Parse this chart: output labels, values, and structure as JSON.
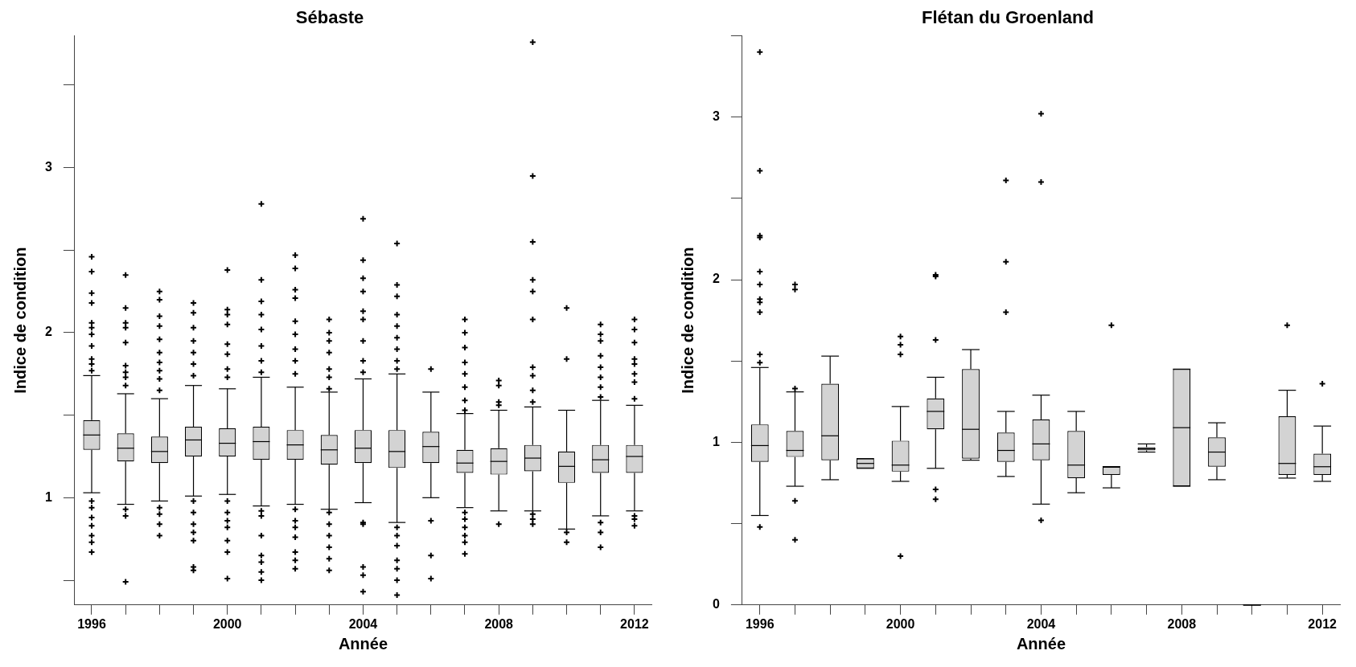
{
  "chart_data": [
    {
      "type": "box",
      "title": "Sébaste",
      "xlabel": "Année",
      "ylabel": "Indice de condition",
      "marker": "cross",
      "categories": [
        "1996",
        null,
        null,
        null,
        "2000",
        null,
        null,
        null,
        "2004",
        null,
        null,
        null,
        "2008",
        null,
        null,
        null,
        "2012"
      ],
      "ylim": [
        0.35,
        3.8
      ],
      "yticks": [
        {
          "value": 0.5,
          "label": null
        },
        1,
        {
          "value": 1.5,
          "label": null
        },
        2,
        {
          "value": 2.5,
          "label": null
        },
        3,
        {
          "value": 3.5,
          "label": null
        }
      ],
      "boxes": [
        {
          "low": 1.03,
          "q1": 1.29,
          "median": 1.38,
          "q3": 1.47,
          "high": 1.74,
          "outliers": [
            2.46,
            2.37,
            2.24,
            2.18,
            2.06,
            2.03,
            1.99,
            1.92,
            1.84,
            1.81,
            1.77,
            0.98,
            0.94,
            0.88,
            0.83,
            0.77,
            0.73,
            0.67
          ]
        },
        {
          "low": 0.96,
          "q1": 1.22,
          "median": 1.3,
          "q3": 1.39,
          "high": 1.63,
          "outliers": [
            2.35,
            2.15,
            2.06,
            2.03,
            1.94,
            1.8,
            1.76,
            1.73,
            1.68,
            0.93,
            0.89,
            0.49
          ]
        },
        {
          "low": 0.98,
          "q1": 1.21,
          "median": 1.28,
          "q3": 1.37,
          "high": 1.6,
          "outliers": [
            2.25,
            2.2,
            2.1,
            2.04,
            1.96,
            1.88,
            1.82,
            1.77,
            1.72,
            1.65,
            0.94,
            0.9,
            0.84,
            0.77
          ]
        },
        {
          "low": 1.01,
          "q1": 1.25,
          "median": 1.35,
          "q3": 1.43,
          "high": 1.68,
          "outliers": [
            2.18,
            2.12,
            2.03,
            1.95,
            1.88,
            1.81,
            1.74,
            0.98,
            0.91,
            0.84,
            0.79,
            0.74,
            0.58,
            0.56
          ]
        },
        {
          "low": 1.02,
          "q1": 1.25,
          "median": 1.33,
          "q3": 1.42,
          "high": 1.66,
          "outliers": [
            2.38,
            2.14,
            2.11,
            2.05,
            1.93,
            1.87,
            1.78,
            1.73,
            0.98,
            0.91,
            0.86,
            0.82,
            0.74,
            0.67,
            0.51
          ]
        },
        {
          "low": 0.95,
          "q1": 1.23,
          "median": 1.34,
          "q3": 1.43,
          "high": 1.73,
          "outliers": [
            2.78,
            2.32,
            2.19,
            2.11,
            2.02,
            1.92,
            1.83,
            1.76,
            0.92,
            0.89,
            0.77,
            0.65,
            0.61,
            0.55,
            0.5
          ]
        },
        {
          "low": 0.96,
          "q1": 1.23,
          "median": 1.32,
          "q3": 1.41,
          "high": 1.67,
          "outliers": [
            2.47,
            2.39,
            2.26,
            2.21,
            2.07,
            1.99,
            1.9,
            1.83,
            1.75,
            0.93,
            0.86,
            0.82,
            0.76,
            0.67,
            0.62,
            0.57
          ]
        },
        {
          "low": 0.93,
          "q1": 1.2,
          "median": 1.29,
          "q3": 1.38,
          "high": 1.64,
          "outliers": [
            2.08,
            2.0,
            1.95,
            1.88,
            1.78,
            1.73,
            1.66,
            0.91,
            0.84,
            0.77,
            0.7,
            0.63,
            0.56
          ]
        },
        {
          "low": 0.97,
          "q1": 1.21,
          "median": 1.3,
          "q3": 1.41,
          "high": 1.72,
          "outliers": [
            2.69,
            2.44,
            2.33,
            2.25,
            2.13,
            2.08,
            1.95,
            1.83,
            1.76,
            0.85,
            0.84,
            0.58,
            0.53,
            0.43
          ]
        },
        {
          "low": 0.85,
          "q1": 1.18,
          "median": 1.28,
          "q3": 1.41,
          "high": 1.75,
          "outliers": [
            2.54,
            2.29,
            2.22,
            2.11,
            2.04,
            1.97,
            1.9,
            1.83,
            1.78,
            0.82,
            0.77,
            0.71,
            0.62,
            0.57,
            0.5,
            0.41
          ]
        },
        {
          "low": 1.0,
          "q1": 1.21,
          "median": 1.31,
          "q3": 1.4,
          "high": 1.64,
          "outliers": [
            1.78,
            0.86,
            0.65,
            0.51
          ]
        },
        {
          "low": 0.94,
          "q1": 1.15,
          "median": 1.21,
          "q3": 1.29,
          "high": 1.51,
          "outliers": [
            2.08,
            2.0,
            1.91,
            1.82,
            1.75,
            1.67,
            1.59,
            1.53,
            0.91,
            0.87,
            0.82,
            0.77,
            0.73,
            0.66
          ]
        },
        {
          "low": 0.92,
          "q1": 1.14,
          "median": 1.22,
          "q3": 1.3,
          "high": 1.53,
          "outliers": [
            1.71,
            1.68,
            1.58,
            1.56,
            0.84
          ]
        },
        {
          "low": 0.92,
          "q1": 1.16,
          "median": 1.24,
          "q3": 1.32,
          "high": 1.55,
          "outliers": [
            3.76,
            2.95,
            2.55,
            2.32,
            2.25,
            2.08,
            1.79,
            1.74,
            1.65,
            1.58,
            0.9,
            0.87,
            0.84
          ]
        },
        {
          "low": 0.81,
          "q1": 1.09,
          "median": 1.19,
          "q3": 1.28,
          "high": 1.53,
          "outliers": [
            2.15,
            1.84,
            0.79,
            0.73
          ]
        },
        {
          "low": 0.89,
          "q1": 1.15,
          "median": 1.23,
          "q3": 1.32,
          "high": 1.59,
          "outliers": [
            2.05,
            1.99,
            1.95,
            1.86,
            1.79,
            1.73,
            1.67,
            1.61,
            0.85,
            0.79,
            0.7
          ]
        },
        {
          "low": 0.92,
          "q1": 1.15,
          "median": 1.25,
          "q3": 1.32,
          "high": 1.56,
          "outliers": [
            2.08,
            2.02,
            1.94,
            1.84,
            1.81,
            1.75,
            1.7,
            1.6,
            0.89,
            0.87,
            0.83
          ]
        }
      ]
    },
    {
      "type": "box",
      "title": "Flétan du Groenland",
      "xlabel": "Année",
      "ylabel": "Indice de condition",
      "marker": "cross",
      "categories": [
        "1996",
        null,
        null,
        null,
        "2000",
        null,
        null,
        null,
        "2004",
        null,
        null,
        null,
        "2008",
        null,
        null,
        null,
        "2012"
      ],
      "ylim": [
        0,
        3.5
      ],
      "yticks": [
        0,
        {
          "value": 0.5,
          "label": null
        },
        1,
        {
          "value": 1.5,
          "label": null
        },
        2,
        {
          "value": 2.5,
          "label": null
        },
        3,
        {
          "value": 3.5,
          "label": null
        }
      ],
      "boxes": [
        {
          "low": 0.55,
          "q1": 0.88,
          "median": 0.98,
          "q3": 1.11,
          "high": 1.46,
          "outliers": [
            3.4,
            2.67,
            2.27,
            2.26,
            2.05,
            1.97,
            1.88,
            1.86,
            1.8,
            1.54,
            1.49,
            0.48
          ]
        },
        {
          "low": 0.73,
          "q1": 0.91,
          "median": 0.95,
          "q3": 1.07,
          "high": 1.31,
          "outliers": [
            1.97,
            1.94,
            1.33,
            0.64,
            0.4
          ]
        },
        {
          "low": 0.77,
          "q1": 0.89,
          "median": 1.04,
          "q3": 1.36,
          "high": 1.53
        },
        {
          "low": 0.84,
          "q1": 0.84,
          "median": 0.87,
          "q3": 0.9,
          "high": 0.9
        },
        {
          "low": 0.76,
          "q1": 0.82,
          "median": 0.86,
          "q3": 1.01,
          "high": 1.22,
          "outliers": [
            1.65,
            1.6,
            1.54,
            0.3
          ]
        },
        {
          "low": 0.84,
          "q1": 1.08,
          "median": 1.19,
          "q3": 1.27,
          "high": 1.4,
          "outliers": [
            2.03,
            2.02,
            1.63,
            0.71,
            0.65
          ]
        },
        {
          "low": 0.89,
          "q1": 0.9,
          "median": 1.08,
          "q3": 1.45,
          "high": 1.57
        },
        {
          "low": 0.79,
          "q1": 0.88,
          "median": 0.95,
          "q3": 1.06,
          "high": 1.19,
          "outliers": [
            2.61,
            2.11,
            1.8
          ]
        },
        {
          "low": 0.62,
          "q1": 0.89,
          "median": 0.99,
          "q3": 1.14,
          "high": 1.29,
          "outliers": [
            3.02,
            2.6,
            0.52
          ]
        },
        {
          "low": 0.69,
          "q1": 0.78,
          "median": 0.86,
          "q3": 1.07,
          "high": 1.19
        },
        {
          "low": 0.72,
          "q1": 0.8,
          "median": 0.85,
          "q3": 0.85,
          "high": 0.85,
          "outliers": [
            1.72
          ]
        },
        {
          "low": 0.94,
          "q1": 0.95,
          "median": 0.96,
          "q3": 0.97,
          "high": 0.99
        },
        {
          "low": 0.73,
          "q1": 0.73,
          "median": 1.09,
          "q3": 1.45,
          "high": 1.45
        },
        {
          "low": 0.77,
          "q1": 0.85,
          "median": 0.94,
          "q3": 1.03,
          "high": 1.12
        },
        {
          "low": 0,
          "q1": 0,
          "median": 0,
          "q3": 0,
          "high": 0
        },
        {
          "low": 0.78,
          "q1": 0.8,
          "median": 0.87,
          "q3": 1.16,
          "high": 1.32,
          "outliers": [
            1.72
          ]
        },
        {
          "low": 0.76,
          "q1": 0.8,
          "median": 0.85,
          "q3": 0.93,
          "high": 1.1,
          "outliers": [
            1.36
          ]
        }
      ]
    }
  ]
}
